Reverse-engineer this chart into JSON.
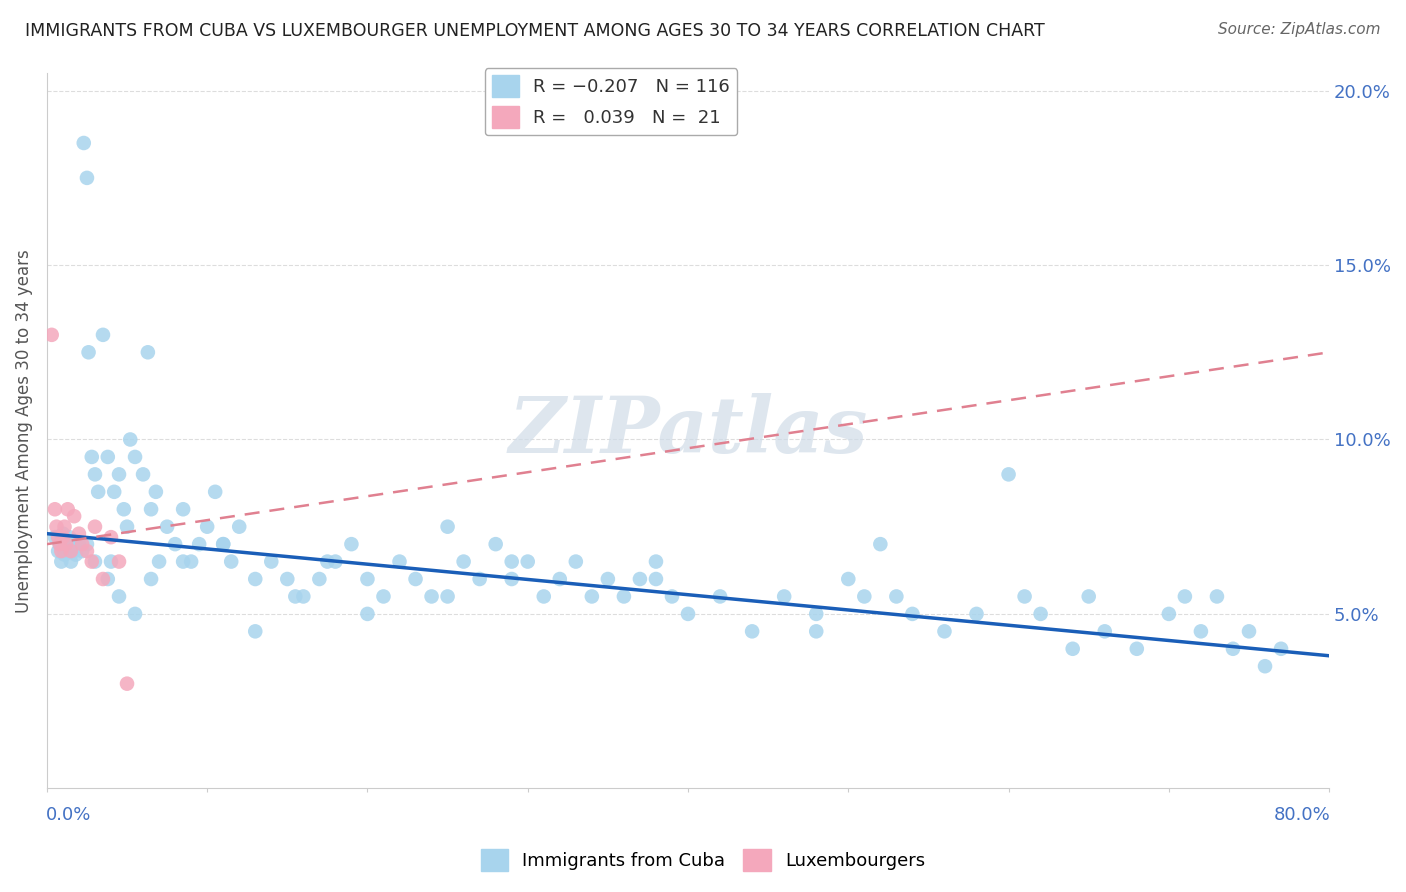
{
  "title": "IMMIGRANTS FROM CUBA VS LUXEMBOURGER UNEMPLOYMENT AMONG AGES 30 TO 34 YEARS CORRELATION CHART",
  "source": "Source: ZipAtlas.com",
  "ylabel": "Unemployment Among Ages 30 to 34 years",
  "xlim": [
    0.0,
    0.8
  ],
  "ylim": [
    0.0,
    0.205
  ],
  "yticks": [
    0.05,
    0.1,
    0.15,
    0.2
  ],
  "ytick_labels": [
    "5.0%",
    "10.0%",
    "15.0%",
    "20.0%"
  ],
  "blue_color": "#a8d4ed",
  "pink_color": "#f4a8bc",
  "blue_line_color": "#1a5eb8",
  "pink_line_color": "#e08090",
  "watermark": "ZIPatlas",
  "blue_line_x": [
    0.0,
    0.8
  ],
  "blue_line_y": [
    0.073,
    0.038
  ],
  "pink_line_x": [
    0.0,
    0.8
  ],
  "pink_line_y": [
    0.07,
    0.125
  ],
  "blue_scatter_x": [
    0.005,
    0.007,
    0.008,
    0.009,
    0.01,
    0.01,
    0.011,
    0.012,
    0.013,
    0.014,
    0.015,
    0.016,
    0.017,
    0.018,
    0.019,
    0.02,
    0.022,
    0.023,
    0.025,
    0.026,
    0.028,
    0.03,
    0.032,
    0.035,
    0.038,
    0.04,
    0.042,
    0.045,
    0.048,
    0.05,
    0.052,
    0.055,
    0.06,
    0.063,
    0.065,
    0.068,
    0.07,
    0.075,
    0.08,
    0.085,
    0.09,
    0.095,
    0.1,
    0.105,
    0.11,
    0.115,
    0.12,
    0.13,
    0.14,
    0.15,
    0.16,
    0.17,
    0.18,
    0.19,
    0.2,
    0.21,
    0.22,
    0.23,
    0.24,
    0.25,
    0.26,
    0.27,
    0.28,
    0.29,
    0.3,
    0.31,
    0.32,
    0.33,
    0.34,
    0.35,
    0.36,
    0.37,
    0.38,
    0.39,
    0.4,
    0.42,
    0.44,
    0.46,
    0.48,
    0.5,
    0.52,
    0.53,
    0.54,
    0.56,
    0.58,
    0.6,
    0.61,
    0.62,
    0.64,
    0.65,
    0.66,
    0.68,
    0.7,
    0.71,
    0.72,
    0.73,
    0.74,
    0.75,
    0.76,
    0.77,
    0.48,
    0.51,
    0.38,
    0.29,
    0.25,
    0.2,
    0.175,
    0.155,
    0.13,
    0.11,
    0.085,
    0.065,
    0.055,
    0.045,
    0.038,
    0.03,
    0.025
  ],
  "blue_scatter_y": [
    0.072,
    0.068,
    0.07,
    0.065,
    0.069,
    0.073,
    0.067,
    0.071,
    0.068,
    0.072,
    0.065,
    0.07,
    0.068,
    0.067,
    0.069,
    0.07,
    0.068,
    0.185,
    0.175,
    0.125,
    0.095,
    0.09,
    0.085,
    0.13,
    0.095,
    0.065,
    0.085,
    0.09,
    0.08,
    0.075,
    0.1,
    0.095,
    0.09,
    0.125,
    0.08,
    0.085,
    0.065,
    0.075,
    0.07,
    0.08,
    0.065,
    0.07,
    0.075,
    0.085,
    0.07,
    0.065,
    0.075,
    0.06,
    0.065,
    0.06,
    0.055,
    0.06,
    0.065,
    0.07,
    0.06,
    0.055,
    0.065,
    0.06,
    0.055,
    0.075,
    0.065,
    0.06,
    0.07,
    0.06,
    0.065,
    0.055,
    0.06,
    0.065,
    0.055,
    0.06,
    0.055,
    0.06,
    0.065,
    0.055,
    0.05,
    0.055,
    0.045,
    0.055,
    0.05,
    0.06,
    0.07,
    0.055,
    0.05,
    0.045,
    0.05,
    0.09,
    0.055,
    0.05,
    0.04,
    0.055,
    0.045,
    0.04,
    0.05,
    0.055,
    0.045,
    0.055,
    0.04,
    0.045,
    0.035,
    0.04,
    0.045,
    0.055,
    0.06,
    0.065,
    0.055,
    0.05,
    0.065,
    0.055,
    0.045,
    0.07,
    0.065,
    0.06,
    0.05,
    0.055,
    0.06,
    0.065,
    0.07
  ],
  "pink_scatter_x": [
    0.003,
    0.005,
    0.006,
    0.007,
    0.008,
    0.009,
    0.01,
    0.011,
    0.012,
    0.013,
    0.015,
    0.017,
    0.02,
    0.022,
    0.025,
    0.028,
    0.03,
    0.035,
    0.04,
    0.045,
    0.05
  ],
  "pink_scatter_y": [
    0.13,
    0.08,
    0.075,
    0.072,
    0.07,
    0.068,
    0.072,
    0.075,
    0.07,
    0.08,
    0.068,
    0.078,
    0.073,
    0.07,
    0.068,
    0.065,
    0.075,
    0.06,
    0.072,
    0.065,
    0.03
  ]
}
